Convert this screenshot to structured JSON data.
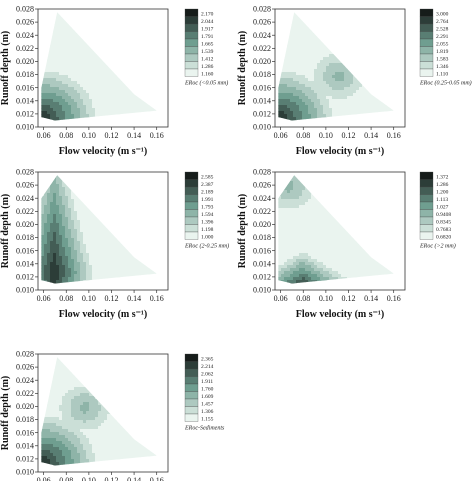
{
  "chart_data": [
    {
      "type": "heatmap",
      "title": "",
      "xlabel": "Flow velocity (m s⁻¹)",
      "ylabel": "Runoff depth (m)",
      "x_ticks": [
        "0.06",
        "0.08",
        "0.10",
        "0.12",
        "0.14",
        "0.16"
      ],
      "y_ticks": [
        "0.010",
        "0.012",
        "0.014",
        "0.016",
        "0.018",
        "0.020",
        "0.022",
        "0.024",
        "0.026",
        "0.028"
      ],
      "xlim": [
        0.055,
        0.17
      ],
      "ylim": [
        0.01,
        0.028
      ],
      "legend_title": "ERoc (<0.05 mm)",
      "legend_levels": [
        "2.170",
        "2.044",
        "1.917",
        "1.791",
        "1.665",
        "1.539",
        "1.412",
        "1.286",
        "1.160"
      ],
      "domain_vertices": [
        [
          0.058,
          0.016
        ],
        [
          0.072,
          0.0275
        ],
        [
          0.14,
          0.015
        ],
        [
          0.16,
          0.0125
        ],
        [
          0.07,
          0.011
        ],
        [
          0.058,
          0.0115
        ]
      ],
      "peak": [
        0.058,
        0.0115
      ],
      "secondary": null,
      "gradient": "corner"
    },
    {
      "type": "heatmap",
      "title": "",
      "xlabel": "Flow velocity (m s⁻¹)",
      "ylabel": "Runoff depth (m)",
      "x_ticks": [
        "0.06",
        "0.08",
        "0.10",
        "0.12",
        "0.14",
        "0.16"
      ],
      "y_ticks": [
        "0.010",
        "0.012",
        "0.014",
        "0.016",
        "0.018",
        "0.020",
        "0.022",
        "0.024",
        "0.026",
        "0.028"
      ],
      "xlim": [
        0.055,
        0.17
      ],
      "ylim": [
        0.01,
        0.028
      ],
      "legend_title": "ERoc (0.25-0.05 mm)",
      "legend_levels": [
        "3.000",
        "2.764",
        "2.528",
        "2.291",
        "2.055",
        "1.819",
        "1.583",
        "1.346",
        "1.110"
      ],
      "domain_vertices": [
        [
          0.058,
          0.016
        ],
        [
          0.072,
          0.0275
        ],
        [
          0.14,
          0.015
        ],
        [
          0.16,
          0.0125
        ],
        [
          0.07,
          0.011
        ],
        [
          0.058,
          0.0115
        ]
      ],
      "peak": [
        0.058,
        0.0115
      ],
      "secondary": [
        0.11,
        0.018
      ],
      "gradient": "corner"
    },
    {
      "type": "heatmap",
      "title": "",
      "xlabel": "Flow velocity (m s⁻¹)",
      "ylabel": "Runoff depth (m)",
      "x_ticks": [
        "0.06",
        "0.08",
        "0.10",
        "0.12",
        "0.14",
        "0.16"
      ],
      "y_ticks": [
        "0.010",
        "0.012",
        "0.014",
        "0.016",
        "0.018",
        "0.020",
        "0.022",
        "0.024",
        "0.026",
        "0.028"
      ],
      "xlim": [
        0.055,
        0.17
      ],
      "ylim": [
        0.01,
        0.028
      ],
      "legend_title": "ERoc (2-0.25 mm)",
      "legend_levels": [
        "2.585",
        "2.387",
        "2.189",
        "1.991",
        "1.793",
        "1.594",
        "1.396",
        "1.198",
        "1.000"
      ],
      "domain_vertices": [
        [
          0.058,
          0.0115
        ],
        [
          0.058,
          0.024
        ],
        [
          0.072,
          0.0275
        ],
        [
          0.14,
          0.015
        ],
        [
          0.16,
          0.0125
        ],
        [
          0.07,
          0.011
        ]
      ],
      "peak": [
        0.068,
        0.013
      ],
      "secondary": null,
      "gradient": "leftband"
    },
    {
      "type": "heatmap",
      "title": "",
      "xlabel": "Flow velocity (m s⁻¹)",
      "ylabel": "Runoff depth (m)",
      "x_ticks": [
        "0.06",
        "0.08",
        "0.10",
        "0.12",
        "0.14",
        "0.16"
      ],
      "y_ticks": [
        "0.010",
        "0.012",
        "0.014",
        "0.016",
        "0.018",
        "0.020",
        "0.022",
        "0.024",
        "0.026",
        "0.028"
      ],
      "xlim": [
        0.055,
        0.17
      ],
      "ylim": [
        0.01,
        0.028
      ],
      "legend_title": "ERoc (>2 mm)",
      "legend_levels": [
        "1.372",
        "1.286",
        "1.200",
        "1.113",
        "1.027",
        "0.9408",
        "0.8345",
        "0.7683",
        "0.6820"
      ],
      "domain_vertices": [
        [
          0.058,
          0.0115
        ],
        [
          0.058,
          0.024
        ],
        [
          0.072,
          0.0275
        ],
        [
          0.14,
          0.015
        ],
        [
          0.16,
          0.0125
        ],
        [
          0.07,
          0.011
        ]
      ],
      "peak": [
        0.078,
        0.0105
      ],
      "secondary": [
        0.066,
        0.026
      ],
      "gradient": "bottom"
    },
    {
      "type": "heatmap",
      "title": "",
      "xlabel": "Flow velocity (m s⁻¹)",
      "ylabel": "Runoff depth (m)",
      "x_ticks": [
        "0.06",
        "0.08",
        "0.10",
        "0.12",
        "0.14",
        "0.16"
      ],
      "y_ticks": [
        "0.010",
        "0.012",
        "0.014",
        "0.016",
        "0.018",
        "0.020",
        "0.022",
        "0.024",
        "0.026",
        "0.028"
      ],
      "xlim": [
        0.055,
        0.17
      ],
      "ylim": [
        0.01,
        0.028
      ],
      "legend_title": "ERoc-Sediments",
      "legend_levels": [
        "2.365",
        "2.214",
        "2.062",
        "1.911",
        "1.760",
        "1.609",
        "1.457",
        "1.306",
        "1.155"
      ],
      "domain_vertices": [
        [
          0.058,
          0.016
        ],
        [
          0.072,
          0.0275
        ],
        [
          0.14,
          0.015
        ],
        [
          0.16,
          0.0125
        ],
        [
          0.07,
          0.011
        ],
        [
          0.058,
          0.0115
        ]
      ],
      "peak": [
        0.058,
        0.0115
      ],
      "secondary": [
        0.095,
        0.02
      ],
      "gradient": "corner"
    }
  ],
  "colors": {
    "ramp_dark": "#161c1a",
    "ramp_mid": "#6f9e90",
    "ramp_light": "#eaf4ef",
    "frame": "#333333"
  }
}
